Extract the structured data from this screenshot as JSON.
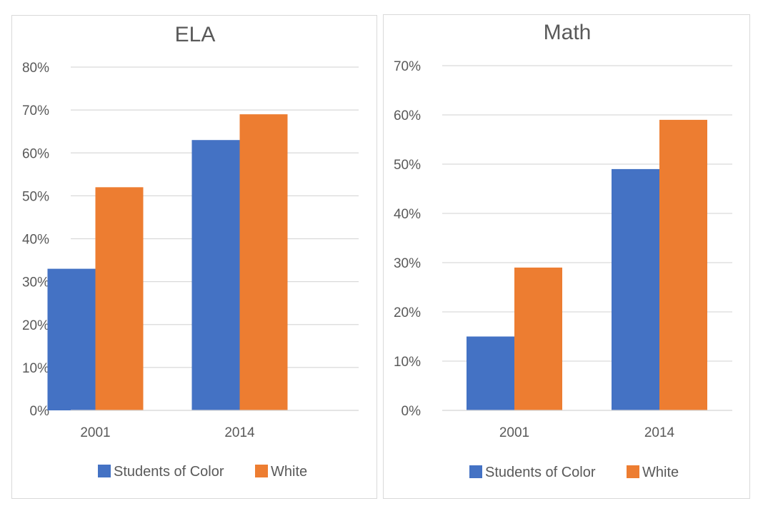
{
  "chart_data": [
    {
      "type": "bar",
      "title": "ELA",
      "categories": [
        "2001",
        "2014"
      ],
      "series": [
        {
          "name": "Students of Color",
          "values": [
            33,
            63
          ],
          "color": "#4472C4"
        },
        {
          "name": "White",
          "values": [
            52,
            69
          ],
          "color": "#ED7D31"
        }
      ],
      "ylim": [
        0,
        80
      ],
      "yticks": [
        0,
        10,
        20,
        30,
        40,
        50,
        60,
        70,
        80
      ],
      "ytick_labels": [
        "0%",
        "10%",
        "20%",
        "30%",
        "40%",
        "50%",
        "60%",
        "70%",
        "80%"
      ],
      "grid": true,
      "legend_position": "bottom"
    },
    {
      "type": "bar",
      "title": "Math",
      "categories": [
        "2001",
        "2014"
      ],
      "series": [
        {
          "name": "Students of Color",
          "values": [
            15,
            49
          ],
          "color": "#4472C4"
        },
        {
          "name": "White",
          "values": [
            29,
            59
          ],
          "color": "#ED7D31"
        }
      ],
      "ylim": [
        0,
        70
      ],
      "yticks": [
        0,
        10,
        20,
        30,
        40,
        50,
        60,
        70
      ],
      "ytick_labels": [
        "0%",
        "10%",
        "20%",
        "30%",
        "40%",
        "50%",
        "60%",
        "70%"
      ],
      "grid": true,
      "legend_position": "bottom"
    }
  ]
}
